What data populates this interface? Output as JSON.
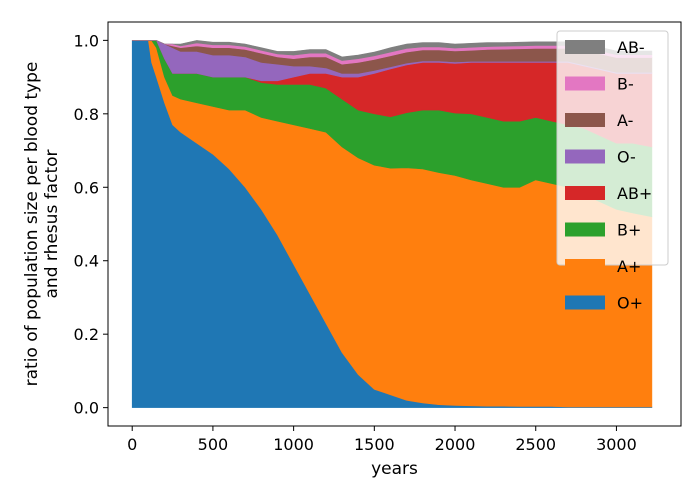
{
  "chart_data": {
    "type": "area",
    "stacked": true,
    "normalized": true,
    "xlabel": "years",
    "ylabel_lines": [
      "ratio of population size per blood type",
      "and rhesus factor"
    ],
    "xlim": [
      -150,
      3400
    ],
    "ylim": [
      -0.05,
      1.05
    ],
    "xticks": [
      0,
      500,
      1000,
      1500,
      2000,
      2500,
      3000
    ],
    "yticks": [
      0.0,
      0.2,
      0.4,
      0.6,
      0.8,
      1.0
    ],
    "ytick_labels": [
      "0.0",
      "0.2",
      "0.4",
      "0.6",
      "0.8",
      "1.0"
    ],
    "legend_position": "upper-right",
    "x": [
      0,
      100,
      120,
      150,
      200,
      250,
      300,
      400,
      500,
      600,
      700,
      800,
      900,
      1000,
      1100,
      1200,
      1300,
      1400,
      1500,
      1600,
      1700,
      1800,
      1900,
      2000,
      2100,
      2200,
      2300,
      2400,
      2500,
      2600,
      2700,
      2800,
      2900,
      3000,
      3100,
      3220
    ],
    "series": [
      {
        "name": "O+",
        "color": "#1f77b4",
        "values": [
          1.0,
          1.0,
          0.94,
          0.9,
          0.83,
          0.77,
          0.75,
          0.72,
          0.69,
          0.65,
          0.6,
          0.54,
          0.47,
          0.39,
          0.31,
          0.23,
          0.15,
          0.09,
          0.05,
          0.035,
          0.02,
          0.013,
          0.008,
          0.006,
          0.005,
          0.004,
          0.004,
          0.003,
          0.003,
          0.003,
          0.002,
          0.002,
          0.002,
          0.002,
          0.002,
          0.002
        ]
      },
      {
        "name": "A+",
        "color": "#ff7f0e",
        "values": [
          0.0,
          0.0,
          0.06,
          0.08,
          0.07,
          0.08,
          0.09,
          0.11,
          0.13,
          0.16,
          0.21,
          0.25,
          0.31,
          0.38,
          0.45,
          0.52,
          0.56,
          0.59,
          0.61,
          0.617,
          0.633,
          0.637,
          0.632,
          0.626,
          0.615,
          0.606,
          0.596,
          0.597,
          0.617,
          0.607,
          0.598,
          0.578,
          0.558,
          0.538,
          0.528,
          0.518
        ]
      },
      {
        "name": "B+",
        "color": "#2ca02c",
        "values": [
          0.0,
          0.0,
          0.0,
          0.02,
          0.05,
          0.06,
          0.07,
          0.08,
          0.08,
          0.09,
          0.09,
          0.095,
          0.1,
          0.11,
          0.12,
          0.12,
          0.13,
          0.13,
          0.14,
          0.14,
          0.15,
          0.16,
          0.17,
          0.17,
          0.18,
          0.18,
          0.18,
          0.18,
          0.17,
          0.17,
          0.17,
          0.18,
          0.18,
          0.18,
          0.19,
          0.19
        ]
      },
      {
        "name": "AB+",
        "color": "#d62728",
        "values": [
          0.0,
          0.0,
          0.0,
          0.0,
          0.0,
          0.0,
          0.0,
          0.0,
          0.0,
          0.0,
          0.0,
          0.005,
          0.01,
          0.02,
          0.03,
          0.04,
          0.06,
          0.09,
          0.11,
          0.13,
          0.13,
          0.13,
          0.13,
          0.135,
          0.14,
          0.15,
          0.16,
          0.16,
          0.15,
          0.16,
          0.17,
          0.17,
          0.18,
          0.19,
          0.19,
          0.2
        ]
      },
      {
        "name": "O-",
        "color": "#9467bd",
        "values": [
          0.0,
          0.0,
          0.0,
          0.0,
          0.04,
          0.07,
          0.06,
          0.06,
          0.06,
          0.06,
          0.055,
          0.05,
          0.045,
          0.03,
          0.02,
          0.015,
          0.01,
          0.01,
          0.008,
          0.006,
          0.005,
          0.004,
          0.004,
          0.004,
          0.003,
          0.003,
          0.003,
          0.003,
          0.003,
          0.003,
          0.003,
          0.003,
          0.003,
          0.003,
          0.003,
          0.003
        ]
      },
      {
        "name": "A-",
        "color": "#8c564b",
        "values": [
          0.0,
          0.0,
          0.0,
          0.0,
          0.0,
          0.005,
          0.01,
          0.015,
          0.02,
          0.02,
          0.02,
          0.025,
          0.02,
          0.02,
          0.025,
          0.03,
          0.025,
          0.03,
          0.03,
          0.03,
          0.03,
          0.03,
          0.03,
          0.03,
          0.03,
          0.032,
          0.033,
          0.034,
          0.035,
          0.035,
          0.035,
          0.04,
          0.04,
          0.04,
          0.04,
          0.04
        ]
      },
      {
        "name": "B-",
        "color": "#e377c2",
        "values": [
          0.0,
          0.0,
          0.0,
          0.0,
          0.0,
          0.005,
          0.005,
          0.008,
          0.008,
          0.008,
          0.008,
          0.008,
          0.008,
          0.01,
          0.01,
          0.01,
          0.01,
          0.01,
          0.01,
          0.01,
          0.01,
          0.008,
          0.008,
          0.008,
          0.008,
          0.008,
          0.008,
          0.008,
          0.008,
          0.008,
          0.008,
          0.008,
          0.008,
          0.008,
          0.008,
          0.008
        ]
      },
      {
        "name": "AB-",
        "color": "#7f7f7f",
        "values": [
          0.0,
          0.0,
          0.0,
          0.0,
          0.0,
          0.0,
          0.005,
          0.007,
          0.007,
          0.007,
          0.007,
          0.007,
          0.007,
          0.01,
          0.01,
          0.01,
          0.01,
          0.01,
          0.01,
          0.012,
          0.012,
          0.012,
          0.012,
          0.011,
          0.011,
          0.011,
          0.01,
          0.01,
          0.01,
          0.01,
          0.01,
          0.01,
          0.01,
          0.01,
          0.01,
          0.01
        ]
      }
    ],
    "legend_order": [
      "AB-",
      "B-",
      "A-",
      "O-",
      "AB+",
      "B+",
      "A+",
      "O+"
    ]
  }
}
